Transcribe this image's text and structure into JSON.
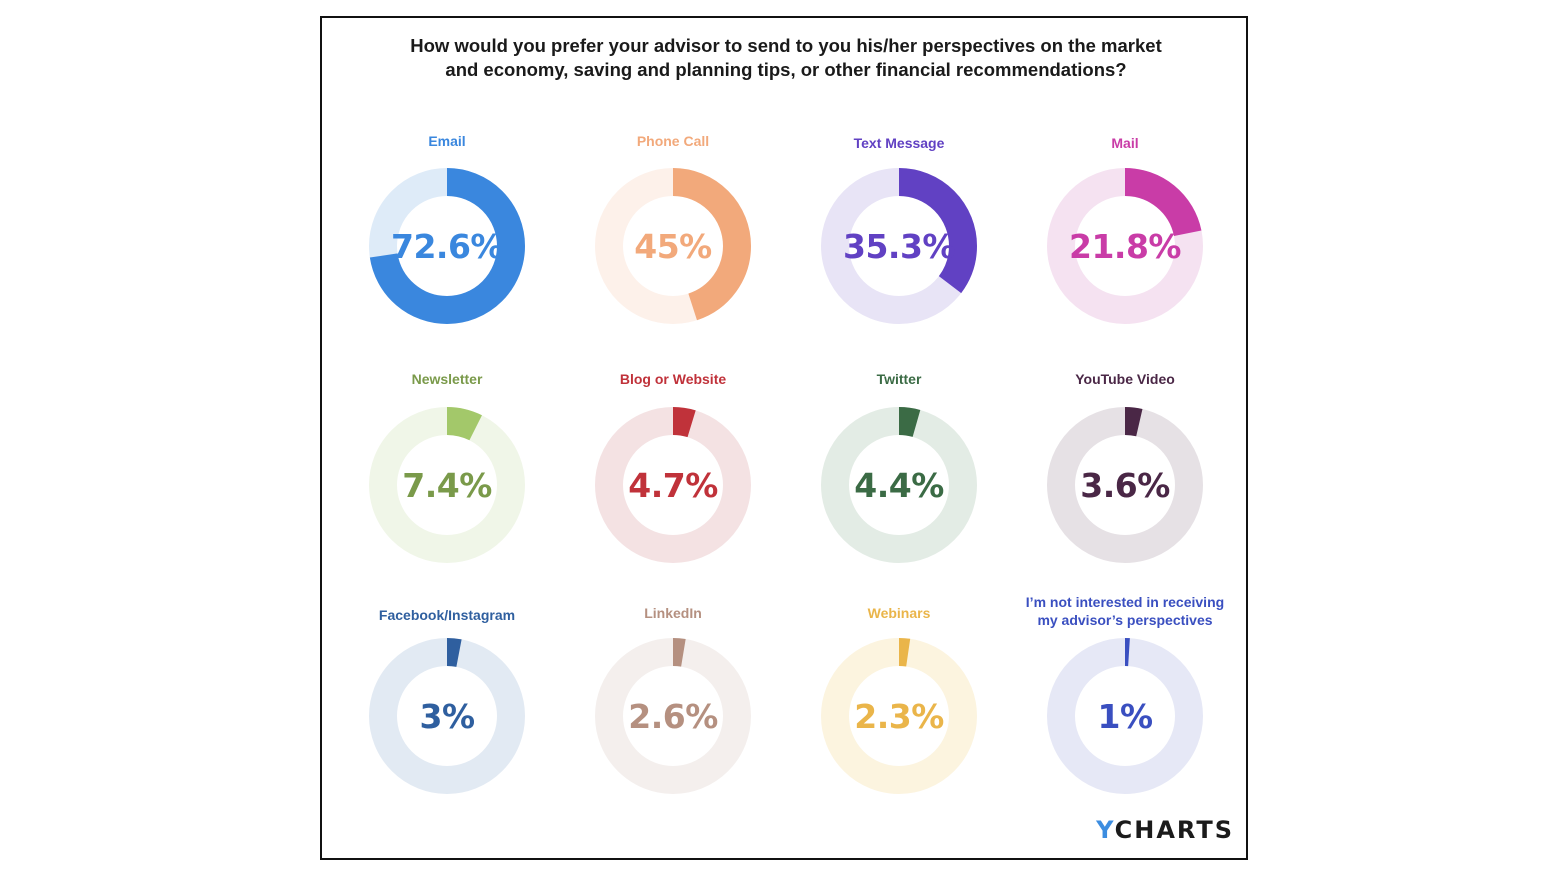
{
  "title_lines": [
    "How would you prefer your advisor to send to you his/her perspectives on the market",
    "and economy, saving and planning tips, or other financial recommendations?"
  ],
  "logo": {
    "y": "Y",
    "rest": "CHARTS"
  },
  "chart_data": {
    "type": "pie",
    "subtype": "donut-grid",
    "title": "How would you prefer your advisor to send to you his/her perspectives on the market and economy, saving and planning tips, or other financial recommendations?",
    "unit": "%",
    "items": [
      {
        "label": "Email",
        "value": 72.6,
        "display": "72.6%",
        "color": "#3a87de",
        "track": "#deebf8"
      },
      {
        "label": "Phone Call",
        "value": 45,
        "display": "45%",
        "color": "#f2a97b",
        "track": "#fdf1ea"
      },
      {
        "label": "Text Message",
        "value": 35.3,
        "display": "35.3%",
        "color": "#6141c3",
        "track": "#e8e4f6"
      },
      {
        "label": "Mail",
        "value": 21.8,
        "display": "21.8%",
        "color": "#c93ca7",
        "track": "#f5e2f1"
      },
      {
        "label": "Newsletter",
        "value": 7.4,
        "display": "7.4%",
        "color": "#a3c86a",
        "text": "#7a9a4a",
        "track": "#f0f6e8"
      },
      {
        "label": "Blog or Website",
        "value": 4.7,
        "display": "4.7%",
        "color": "#c0323a",
        "track": "#f4e2e3"
      },
      {
        "label": "Twitter",
        "value": 4.4,
        "display": "4.4%",
        "color": "#3b6b45",
        "track": "#e3ece5"
      },
      {
        "label": "YouTube Video",
        "value": 3.6,
        "display": "3.6%",
        "color": "#4a2746",
        "track": "#e6e1e5"
      },
      {
        "label": "Facebook/Instagram",
        "value": 3,
        "display": "3%",
        "color": "#2f5f9f",
        "track": "#e2eaf3"
      },
      {
        "label": "LinkedIn",
        "value": 2.6,
        "display": "2.6%",
        "color": "#b59080",
        "track": "#f4efed"
      },
      {
        "label": "Webinars",
        "value": 2.3,
        "display": "2.3%",
        "color": "#eab54a",
        "track": "#fcf4df"
      },
      {
        "label": "I’m not interested in receiving my advisor’s perspectives",
        "value": 1,
        "display": "1%",
        "color": "#3a4fc0",
        "track": "#e6e8f6"
      }
    ]
  }
}
